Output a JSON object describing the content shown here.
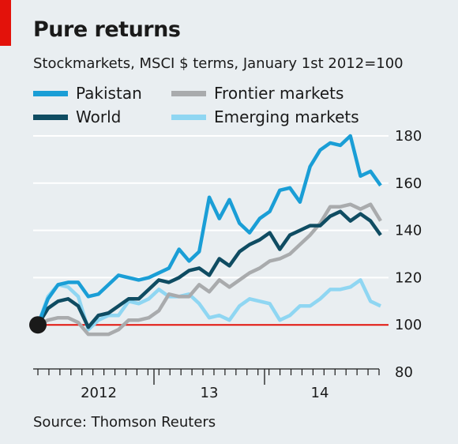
{
  "header": {
    "title": "Pure returns",
    "subtitle": "Stockmarkets, MSCI $ terms, January 1st 2012=100"
  },
  "source": "Source: Thomson Reuters",
  "colors": {
    "background": "#e9eef1",
    "gridline": "#ffffff",
    "baseline": "#e3120b",
    "accent_tag": "#e3120b",
    "start_marker": "#1a1a1a"
  },
  "chart_data": {
    "type": "line",
    "title": "Pure returns",
    "subtitle": "Stockmarkets, MSCI $ terms, January 1st 2012=100",
    "xlabel": "",
    "ylabel": "",
    "ylim": [
      80,
      180
    ],
    "y_ticks": [
      80,
      100,
      120,
      140,
      160,
      180
    ],
    "y_axis_side": "right",
    "baseline_value": 100,
    "grid": true,
    "legend_position": "top-left",
    "x_range": [
      0,
      31
    ],
    "x_period_labels": [
      {
        "label": "2012",
        "x": 5.5
      },
      {
        "label": "13",
        "x": 15.5
      },
      {
        "label": "14",
        "x": 25.5
      }
    ],
    "x_period_boundaries": [
      10.5,
      20.5
    ],
    "x_minor_ticks": 32,
    "series": [
      {
        "name": "Pakistan",
        "color": "#1a9ed6",
        "values": [
          100,
          111,
          117,
          118,
          118,
          112,
          113,
          117,
          121,
          120,
          119,
          120,
          122,
          124,
          132,
          127,
          131,
          154,
          145,
          153,
          143,
          139,
          145,
          148,
          157,
          158,
          152,
          167,
          174,
          177,
          176,
          180,
          163,
          165,
          159
        ]
      },
      {
        "name": "World",
        "color": "#0f4c62",
        "values": [
          100,
          107,
          110,
          111,
          108,
          99,
          104,
          105,
          108,
          111,
          111,
          115,
          119,
          118,
          120,
          123,
          124,
          121,
          128,
          125,
          131,
          134,
          136,
          139,
          132,
          138,
          140,
          142,
          142,
          146,
          148,
          144,
          147,
          144,
          138
        ]
      },
      {
        "name": "Frontier markets",
        "color": "#a9abad",
        "values": [
          100,
          102,
          103,
          103,
          101,
          96,
          96,
          96,
          98,
          102,
          102,
          103,
          106,
          113,
          112,
          112,
          117,
          114,
          119,
          116,
          119,
          122,
          124,
          127,
          128,
          130,
          134,
          138,
          143,
          150,
          150,
          151,
          149,
          151,
          144
        ]
      },
      {
        "name": "Emerging markets",
        "color": "#8fd6f2",
        "values": [
          100,
          112,
          117,
          116,
          112,
          98,
          102,
          104,
          104,
          110,
          109,
          111,
          115,
          112,
          112,
          113,
          109,
          103,
          104,
          102,
          108,
          111,
          110,
          109,
          102,
          104,
          108,
          108,
          111,
          115,
          115,
          116,
          119,
          110,
          108
        ]
      }
    ],
    "start_point": {
      "x": 0,
      "y": 100
    }
  }
}
